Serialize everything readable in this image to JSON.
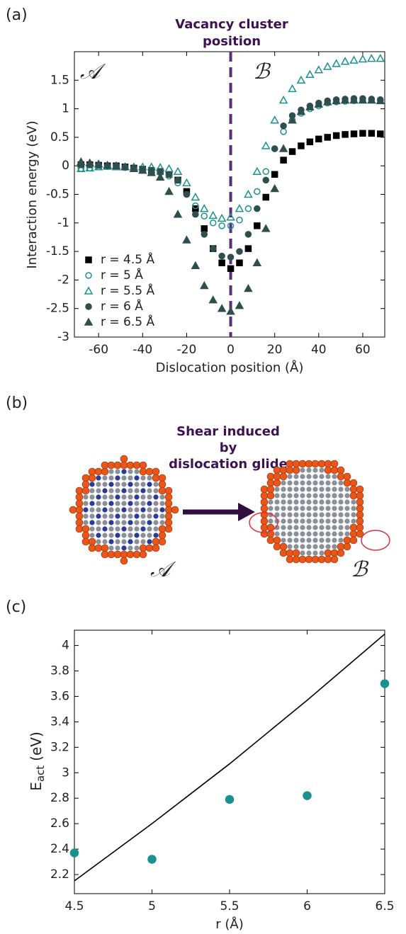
{
  "chart_data": [
    {
      "type": "scatter",
      "panel": "(a)",
      "annotation": [
        "Vacancy cluster",
        "position"
      ],
      "region_labels": [
        "𝒜",
        "ℬ"
      ],
      "vline": 0,
      "xlabel": "Dislocation position (Å)",
      "ylabel": "Interaction energy (eV)",
      "xlim": [
        -71,
        70
      ],
      "xticks": [
        -60,
        -40,
        -20,
        0,
        20,
        40,
        60
      ],
      "ylim": [
        -3,
        2
      ],
      "yticks": [
        -3,
        -2.5,
        -2,
        -1.5,
        -1,
        -0.5,
        0,
        0.5,
        1,
        1.5
      ],
      "legend": "lower left",
      "x": [
        -68,
        -64,
        -60,
        -56,
        -52,
        -48,
        -44,
        -40,
        -36,
        -32,
        -28,
        -24,
        -20,
        -16,
        -12,
        -8,
        -4,
        0,
        4,
        8,
        12,
        16,
        20,
        24,
        28,
        32,
        36,
        40,
        44,
        48,
        52,
        56,
        60,
        64,
        68
      ],
      "series": [
        {
          "name": "r = 4.5 Å",
          "color": "#000000",
          "marker": "square",
          "filled": true,
          "values": [
            0.02,
            0.02,
            0.01,
            0,
            0,
            -0.02,
            -0.04,
            -0.06,
            -0.08,
            -0.1,
            -0.15,
            -0.25,
            -0.45,
            -0.75,
            -1.1,
            -1.45,
            -1.7,
            -1.8,
            -1.7,
            -1.45,
            -1.05,
            -0.55,
            -0.15,
            0.1,
            0.25,
            0.35,
            0.42,
            0.47,
            0.5,
            0.53,
            0.55,
            0.56,
            0.57,
            0.57,
            0.56
          ]
        },
        {
          "name": "r = 5 Å",
          "color": "#1a9090",
          "marker": "circle",
          "filled": false,
          "values": [
            -0.05,
            -0.04,
            -0.02,
            -0.01,
            -0.02,
            -0.03,
            -0.05,
            -0.07,
            -0.09,
            -0.12,
            -0.18,
            -0.3,
            -0.5,
            -0.7,
            -0.88,
            -1.0,
            -1.05,
            -1.05,
            -0.95,
            -0.75,
            -0.45,
            -0.1,
            0.3,
            0.6,
            0.8,
            0.92,
            1.0,
            1.05,
            1.1,
            1.12,
            1.13,
            1.14,
            1.15,
            1.15,
            1.15
          ]
        },
        {
          "name": "r = 5.5 Å",
          "color": "#1a9090",
          "marker": "triangle",
          "filled": false,
          "values": [
            -0.05,
            -0.04,
            -0.02,
            -0.01,
            -0.02,
            -0.02,
            -0.02,
            -0.02,
            -0.02,
            -0.03,
            -0.05,
            -0.1,
            -0.3,
            -0.55,
            -0.75,
            -0.87,
            -0.92,
            -0.9,
            -0.75,
            -0.5,
            -0.1,
            0.35,
            0.8,
            1.15,
            1.35,
            1.5,
            1.6,
            1.68,
            1.74,
            1.79,
            1.83,
            1.85,
            1.87,
            1.88,
            1.88
          ]
        },
        {
          "name": "r = 6 Å",
          "color": "#2f4f4f",
          "marker": "circle",
          "filled": true,
          "values": [
            0.02,
            0.02,
            0.01,
            0,
            0,
            -0.02,
            -0.04,
            -0.06,
            -0.08,
            -0.1,
            -0.15,
            -0.25,
            -0.5,
            -0.85,
            -1.2,
            -1.45,
            -1.58,
            -1.6,
            -1.5,
            -1.2,
            -0.75,
            -0.25,
            0.3,
            0.7,
            0.88,
            0.98,
            1.05,
            1.1,
            1.14,
            1.16,
            1.17,
            1.18,
            1.18,
            1.17,
            1.16
          ]
        },
        {
          "name": "r = 6.5 Å",
          "color": "#2f4f4f",
          "marker": "triangle",
          "filled": true,
          "values": [
            0.07,
            0.05,
            0.03,
            0.01,
            0,
            -0.02,
            -0.05,
            -0.08,
            -0.12,
            -0.2,
            -0.45,
            -0.85,
            -1.3,
            -1.75,
            -2.1,
            -2.35,
            -2.5,
            -2.55,
            -2.45,
            -2.15,
            -1.7,
            -1.1,
            -0.4,
            0.3,
            0.8,
            0.95,
            1.03,
            1.08,
            1.12,
            1.14,
            1.15,
            1.15,
            1.15,
            1.15,
            1.14
          ]
        }
      ]
    },
    {
      "type": "scatter",
      "panel": "(c)",
      "xlabel": "r (Å)",
      "ylabel": {
        "main": "E",
        "sub": "act",
        "unit": "(eV)"
      },
      "xlim": [
        4.5,
        6.5
      ],
      "xticks": [
        4.5,
        5,
        5.5,
        6,
        6.5
      ],
      "ylim": [
        2.05,
        4.12
      ],
      "yticks": [
        2.2,
        2.4,
        2.6,
        2.8,
        3,
        3.2,
        3.4,
        3.6,
        3.8,
        4
      ],
      "x": [
        4.5,
        5,
        5.5,
        6,
        6.5
      ],
      "series": [
        {
          "color": "#1a9090",
          "marker": "circle",
          "filled": true,
          "values": [
            2.37,
            2.32,
            2.79,
            2.82,
            3.7
          ]
        },
        {
          "color": "#000000",
          "marker": "line",
          "values": [
            2.15,
            2.6,
            3.07,
            3.57,
            4.09
          ]
        }
      ]
    }
  ],
  "diagram": {
    "label": "(b)",
    "caption": [
      "Shear induced",
      "by",
      "dislocation glide"
    ],
    "states": [
      "𝒜",
      "ℬ"
    ]
  }
}
